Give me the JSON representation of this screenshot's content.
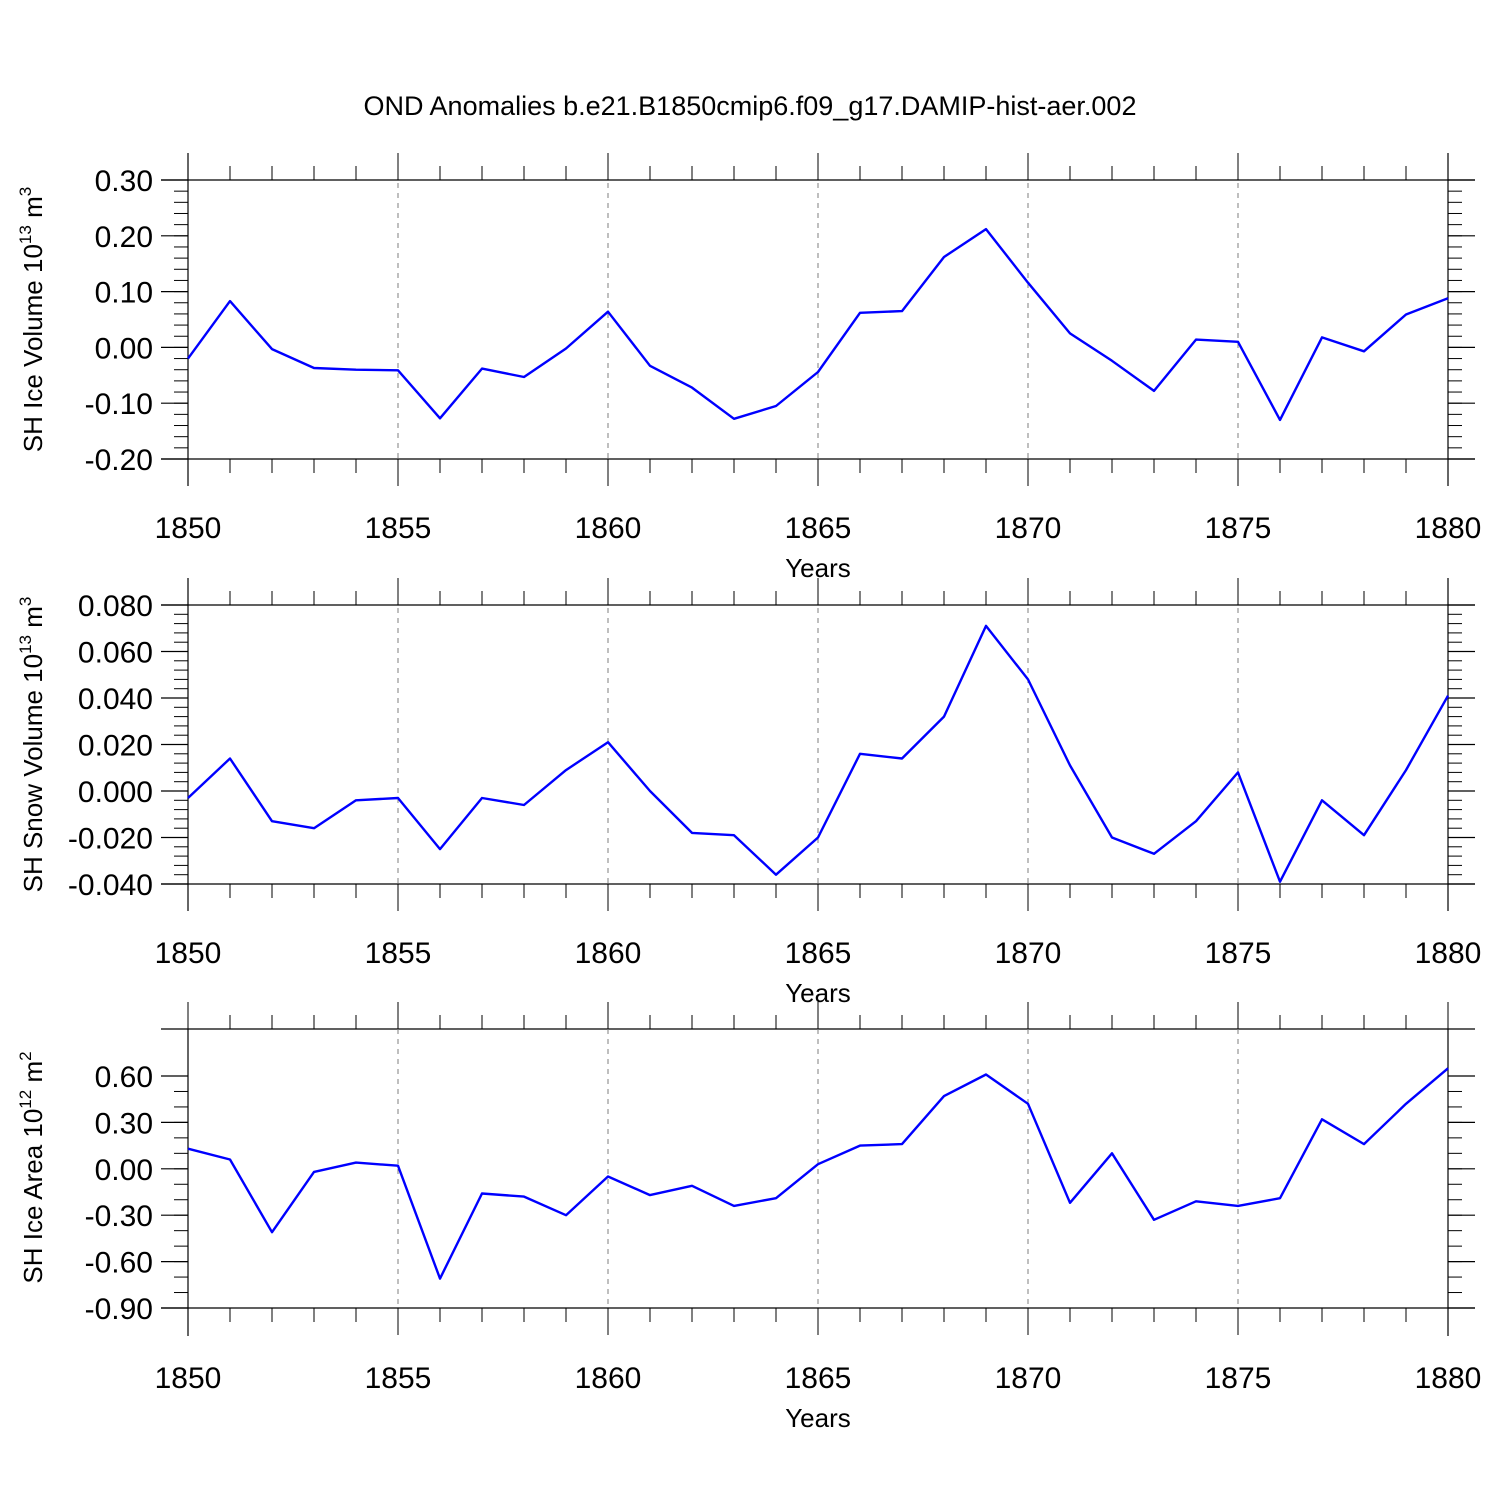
{
  "title": "OND Anomalies b.e21.B1850cmip6.f09_g17.DAMIP-hist-aer.002",
  "colors": {
    "line": "#0000ff",
    "axis": "#000000",
    "grid": "#7f7f7f"
  },
  "chart_data": [
    {
      "type": "line",
      "title": "OND Anomalies b.e21.B1850cmip6.f09_g17.DAMIP-hist-aer.002",
      "xlabel": "Years",
      "ylabel": {
        "text": "SH Ice Volume 10",
        "exp": "13",
        "unit": " m",
        "unit_exp": "3"
      },
      "xlim": [
        1850,
        1880
      ],
      "ylim": [
        -0.2,
        0.3
      ],
      "grid": "vertical dashed at major x ticks",
      "x_ticks": [
        1850,
        1855,
        1860,
        1865,
        1870,
        1875,
        1880
      ],
      "x_tick_labels": [
        "1850",
        "1855",
        "1860",
        "1865",
        "1870",
        "1875",
        "1880"
      ],
      "y_ticks": [
        -0.2,
        -0.1,
        0.0,
        0.1,
        0.2,
        0.3
      ],
      "y_tick_labels": [
        "-0.20",
        "-0.10",
        "0.00",
        "0.10",
        "0.20",
        "0.30"
      ],
      "y_minor_step": 0.02,
      "x": [
        1850,
        1851,
        1852,
        1853,
        1854,
        1855,
        1856,
        1857,
        1858,
        1859,
        1860,
        1861,
        1862,
        1863,
        1864,
        1865,
        1866,
        1867,
        1868,
        1869,
        1870,
        1871,
        1872,
        1873,
        1874,
        1875,
        1876,
        1877,
        1878,
        1879,
        1880
      ],
      "y": [
        -0.02,
        0.083,
        -0.003,
        -0.037,
        -0.04,
        -0.041,
        -0.127,
        -0.038,
        -0.053,
        -0.002,
        0.064,
        -0.033,
        -0.072,
        -0.128,
        -0.105,
        -0.044,
        0.062,
        0.065,
        0.162,
        0.212,
        0.116,
        0.025,
        -0.024,
        -0.078,
        0.014,
        0.01,
        -0.13,
        0.018,
        -0.007,
        0.059,
        0.088
      ]
    },
    {
      "type": "line",
      "xlabel": "Years",
      "ylabel": {
        "text": "SH Snow Volume 10",
        "exp": "13",
        "unit": " m",
        "unit_exp": "3"
      },
      "xlim": [
        1850,
        1880
      ],
      "ylim": [
        -0.04,
        0.08
      ],
      "grid": "vertical dashed at major x ticks",
      "x_ticks": [
        1850,
        1855,
        1860,
        1865,
        1870,
        1875,
        1880
      ],
      "x_tick_labels": [
        "1850",
        "1855",
        "1860",
        "1865",
        "1870",
        "1875",
        "1880"
      ],
      "y_ticks": [
        -0.04,
        -0.02,
        0.0,
        0.02,
        0.04,
        0.06,
        0.08
      ],
      "y_tick_labels": [
        "-0.040",
        "-0.020",
        "0.000",
        "0.020",
        "0.040",
        "0.060",
        "0.080"
      ],
      "y_minor_step": 0.004,
      "x": [
        1850,
        1851,
        1852,
        1853,
        1854,
        1855,
        1856,
        1857,
        1858,
        1859,
        1860,
        1861,
        1862,
        1863,
        1864,
        1865,
        1866,
        1867,
        1868,
        1869,
        1870,
        1871,
        1872,
        1873,
        1874,
        1875,
        1876,
        1877,
        1878,
        1879,
        1880
      ],
      "y": [
        -0.003,
        0.014,
        -0.013,
        -0.016,
        -0.004,
        -0.003,
        -0.025,
        -0.003,
        -0.006,
        0.009,
        0.021,
        0.0,
        -0.018,
        -0.019,
        -0.036,
        -0.02,
        0.016,
        0.014,
        0.032,
        0.071,
        0.048,
        0.011,
        -0.02,
        -0.027,
        -0.013,
        0.008,
        -0.039,
        -0.004,
        -0.019,
        0.009,
        0.041
      ]
    },
    {
      "type": "line",
      "xlabel": "Years",
      "ylabel": {
        "text": "SH Ice Area 10",
        "exp": "12",
        "unit": " m",
        "unit_exp": "2"
      },
      "xlim": [
        1850,
        1880
      ],
      "ylim": [
        -0.9,
        0.9
      ],
      "grid": "vertical dashed at major x ticks",
      "x_ticks": [
        1850,
        1855,
        1860,
        1865,
        1870,
        1875,
        1880
      ],
      "x_tick_labels": [
        "1850",
        "1855",
        "1860",
        "1865",
        "1870",
        "1875",
        "1880"
      ],
      "y_ticks": [
        -0.9,
        -0.6,
        -0.3,
        0.0,
        0.3,
        0.6
      ],
      "y_tick_labels": [
        "-0.90",
        "-0.60",
        "-0.30",
        "0.00",
        "0.30",
        "0.60"
      ],
      "y_minor_step": 0.1,
      "x": [
        1850,
        1851,
        1852,
        1853,
        1854,
        1855,
        1856,
        1857,
        1858,
        1859,
        1860,
        1861,
        1862,
        1863,
        1864,
        1865,
        1866,
        1867,
        1868,
        1869,
        1870,
        1871,
        1872,
        1873,
        1874,
        1875,
        1876,
        1877,
        1878,
        1879,
        1880
      ],
      "y": [
        0.13,
        0.06,
        -0.41,
        -0.02,
        0.04,
        0.02,
        -0.71,
        -0.16,
        -0.18,
        -0.3,
        -0.05,
        -0.17,
        -0.11,
        -0.24,
        -0.19,
        0.03,
        0.15,
        0.16,
        0.47,
        0.61,
        0.42,
        -0.22,
        0.1,
        -0.33,
        -0.21,
        -0.24,
        -0.19,
        0.32,
        0.16,
        0.42,
        0.65
      ]
    }
  ]
}
